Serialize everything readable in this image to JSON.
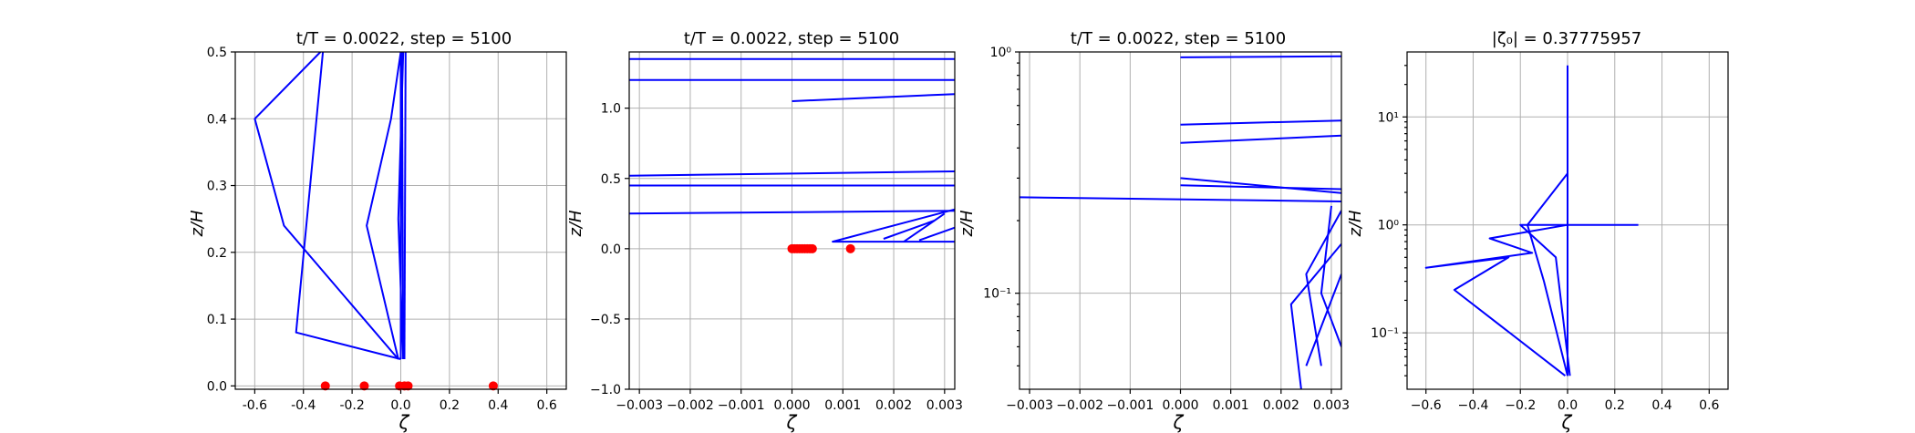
{
  "chart_data": [
    {
      "type": "line",
      "title": "t/T = 0.0022, step = 5100",
      "xlabel": "ζ",
      "ylabel": "z/H",
      "xscale": "linear",
      "yscale": "linear",
      "xlim": [
        -0.68,
        0.68
      ],
      "ylim": [
        -0.005,
        0.5
      ],
      "xticks": [
        "-0.6",
        "-0.4",
        "-0.2",
        "0.0",
        "0.2",
        "0.4",
        "0.6"
      ],
      "yticks": [
        "0.0",
        "0.1",
        "0.2",
        "0.3",
        "0.4",
        "0.5"
      ],
      "grid": true,
      "line_color": "#0000ff",
      "point_color": "#ff0000",
      "series": [
        {
          "values": [
            [
              -0.01,
              0.04
            ],
            [
              -0.48,
              0.24
            ],
            [
              -0.6,
              0.4
            ],
            [
              -0.33,
              0.5
            ]
          ]
        },
        {
          "values": [
            [
              0.0,
              0.04
            ],
            [
              -0.43,
              0.08
            ],
            [
              -0.32,
              0.5
            ]
          ]
        },
        {
          "values": [
            [
              -0.01,
              0.04
            ],
            [
              -0.14,
              0.24
            ],
            [
              -0.04,
              0.4
            ],
            [
              0.0,
              0.5
            ]
          ]
        },
        {
          "values": [
            [
              0.01,
              0.04
            ],
            [
              -0.01,
              0.25
            ],
            [
              0.01,
              0.5
            ]
          ]
        },
        {
          "values": [
            [
              0.0,
              0.04
            ],
            [
              0.0,
              0.5
            ]
          ]
        },
        {
          "values": [
            [
              0.01,
              0.04
            ],
            [
              0.005,
              0.5
            ]
          ]
        },
        {
          "values": [
            [
              0.015,
              0.04
            ],
            [
              0.02,
              0.5
            ]
          ]
        }
      ],
      "points": [
        [
          -0.31,
          0.0
        ],
        [
          -0.15,
          0.0
        ],
        [
          -0.005,
          0.0
        ],
        [
          0.015,
          0.0
        ],
        [
          0.03,
          0.0
        ],
        [
          0.38,
          0.0
        ]
      ]
    },
    {
      "type": "line",
      "title": "t/T = 0.0022, step = 5100",
      "xlabel": "ζ",
      "ylabel": "z/H",
      "xscale": "linear",
      "yscale": "linear",
      "xlim": [
        -0.0032,
        0.0032
      ],
      "ylim": [
        -1.0,
        1.4
      ],
      "xticks": [
        "−0.003",
        "−0.002",
        "−0.001",
        "0.000",
        "0.001",
        "0.002",
        "0.003"
      ],
      "yticks": [
        "−1.0",
        "−0.5",
        "0.0",
        "0.5",
        "1.0"
      ],
      "grid": true,
      "line_color": "#0000ff",
      "point_color": "#ff0000",
      "series": [
        {
          "values": [
            [
              -0.0032,
              0.25
            ],
            [
              0.0032,
              0.27
            ]
          ]
        },
        {
          "values": [
            [
              -0.0032,
              0.45
            ],
            [
              0.0032,
              0.45
            ]
          ]
        },
        {
          "values": [
            [
              -0.0032,
              0.52
            ],
            [
              0.0032,
              0.55
            ]
          ]
        },
        {
          "values": [
            [
              0.0,
              1.05
            ],
            [
              0.0032,
              1.1
            ]
          ]
        },
        {
          "values": [
            [
              -0.0032,
              1.2
            ],
            [
              0.0032,
              1.2
            ]
          ]
        },
        {
          "values": [
            [
              -0.0032,
              1.35
            ],
            [
              0.0032,
              1.35
            ]
          ]
        },
        {
          "values": [
            [
              0.0032,
              0.28
            ],
            [
              0.0008,
              0.05
            ],
            [
              0.0032,
              0.05
            ]
          ]
        },
        {
          "values": [
            [
              0.003,
              0.25
            ],
            [
              0.0022,
              0.05
            ]
          ]
        },
        {
          "values": [
            [
              0.0028,
              0.2
            ],
            [
              0.0018,
              0.07
            ]
          ]
        },
        {
          "values": [
            [
              0.0032,
              0.15
            ],
            [
              0.0025,
              0.06
            ]
          ]
        }
      ],
      "points": [
        [
          0.0,
          0.0
        ],
        [
          5e-05,
          0.0
        ],
        [
          0.0001,
          0.0
        ],
        [
          0.00015,
          0.0
        ],
        [
          0.0002,
          0.0
        ],
        [
          0.00025,
          0.0
        ],
        [
          0.0003,
          0.0
        ],
        [
          0.00035,
          0.0
        ],
        [
          0.0004,
          0.0
        ],
        [
          0.00115,
          0.0
        ]
      ]
    },
    {
      "type": "line",
      "title": "t/T = 0.0022, step = 5100",
      "xlabel": "ζ",
      "ylabel": "z/H",
      "xscale": "linear",
      "yscale": "log",
      "xlim": [
        -0.0032,
        0.0032
      ],
      "ylim": [
        0.04,
        1.0
      ],
      "xticks": [
        "−0.003",
        "−0.002",
        "−0.001",
        "0.000",
        "0.001",
        "0.002",
        "0.003"
      ],
      "yticks": [
        "10⁻¹",
        "10⁰"
      ],
      "grid": true,
      "line_color": "#0000ff",
      "series": [
        {
          "values": [
            [
              -0.0032,
              0.25
            ],
            [
              0.0032,
              0.24
            ]
          ]
        },
        {
          "values": [
            [
              0.0,
              0.95
            ],
            [
              0.0032,
              0.96
            ]
          ]
        },
        {
          "values": [
            [
              0.0,
              0.5
            ],
            [
              0.0032,
              0.52
            ]
          ]
        },
        {
          "values": [
            [
              0.0,
              0.42
            ],
            [
              0.0032,
              0.45
            ]
          ]
        },
        {
          "values": [
            [
              0.0,
              0.3
            ],
            [
              0.0032,
              0.26
            ]
          ]
        },
        {
          "values": [
            [
              0.0,
              0.28
            ],
            [
              0.0032,
              0.27
            ]
          ]
        },
        {
          "values": [
            [
              0.0032,
              0.22
            ],
            [
              0.0025,
              0.12
            ],
            [
              0.0028,
              0.05
            ]
          ]
        },
        {
          "values": [
            [
              0.0032,
              0.16
            ],
            [
              0.0022,
              0.09
            ],
            [
              0.0024,
              0.04
            ]
          ]
        },
        {
          "values": [
            [
              0.003,
              0.23
            ],
            [
              0.0028,
              0.1
            ],
            [
              0.0032,
              0.06
            ]
          ]
        },
        {
          "values": [
            [
              0.0032,
              0.12
            ],
            [
              0.0025,
              0.05
            ]
          ]
        }
      ]
    },
    {
      "type": "line",
      "title": "|ζ₀| = 0.37775957",
      "xlabel": "ζ",
      "ylabel": "z/H",
      "xscale": "linear",
      "yscale": "log",
      "xlim": [
        -0.68,
        0.68
      ],
      "ylim": [
        0.03,
        40
      ],
      "xticks": [
        "−0.6",
        "−0.4",
        "−0.2",
        "0.0",
        "0.2",
        "0.4",
        "0.6"
      ],
      "yticks": [
        "10⁻¹",
        "10⁰",
        "10¹"
      ],
      "grid": true,
      "line_color": "#0000ff",
      "series": [
        {
          "values": [
            [
              -0.01,
              0.04
            ],
            [
              -0.48,
              0.25
            ],
            [
              -0.25,
              0.5
            ],
            [
              -0.6,
              0.4
            ],
            [
              -0.15,
              0.55
            ],
            [
              -0.33,
              0.75
            ],
            [
              0.0,
              1.0
            ]
          ]
        },
        {
          "values": [
            [
              0.0,
              0.04
            ],
            [
              -0.1,
              0.3
            ],
            [
              -0.17,
              1.0
            ],
            [
              0.0,
              3.0
            ]
          ]
        },
        {
          "values": [
            [
              0.01,
              0.04
            ],
            [
              -0.05,
              0.5
            ],
            [
              -0.2,
              1.0
            ],
            [
              0.3,
              1.0
            ]
          ]
        },
        {
          "values": [
            [
              0.0,
              0.04
            ],
            [
              0.0,
              30
            ]
          ]
        }
      ]
    }
  ]
}
